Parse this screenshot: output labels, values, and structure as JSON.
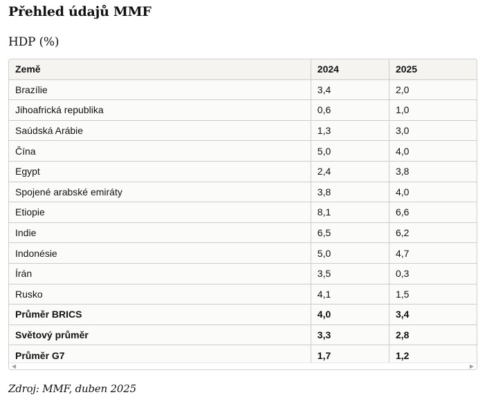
{
  "page": {
    "title": "Přehled údajů MMF",
    "section_title": "HDP (%)",
    "source": "Zdroj: MMF, duben 2025"
  },
  "table": {
    "headers": [
      "Země",
      "2024",
      "2025"
    ],
    "rows": [
      {
        "country": "Brazílie",
        "y2024": "3,4",
        "y2025": "2,0"
      },
      {
        "country": "Jihoafrická republika",
        "y2024": "0,6",
        "y2025": "1,0"
      },
      {
        "country": "Saúdská Arábie",
        "y2024": "1,3",
        "y2025": "3,0"
      },
      {
        "country": "Čína",
        "y2024": "5,0",
        "y2025": "4,0"
      },
      {
        "country": "Egypt",
        "y2024": "2,4",
        "y2025": "3,8"
      },
      {
        "country": "Spojené arabské emiráty",
        "y2024": "3,8",
        "y2025": "4,0"
      },
      {
        "country": "Etiopie",
        "y2024": "8,1",
        "y2025": "6,6"
      },
      {
        "country": "Indie",
        "y2024": "6,5",
        "y2025": "6,2"
      },
      {
        "country": "Indonésie",
        "y2024": "5,0",
        "y2025": "4,7"
      },
      {
        "country": "Írán",
        "y2024": "3,5",
        "y2025": "0,3"
      },
      {
        "country": "Rusko",
        "y2024": "4,1",
        "y2025": "1,5"
      },
      {
        "country": "Průměr BRICS",
        "y2024": "4,0",
        "y2025": "3,4"
      },
      {
        "country": "Světový průměr",
        "y2024": "3,3",
        "y2025": "2,8"
      },
      {
        "country": "Průměr G7",
        "y2024": "1,7",
        "y2025": "1,2"
      }
    ]
  },
  "scrollbar": {
    "left_icon": "scroll-left-arrow-icon",
    "right_icon": "scroll-right-arrow-icon"
  }
}
